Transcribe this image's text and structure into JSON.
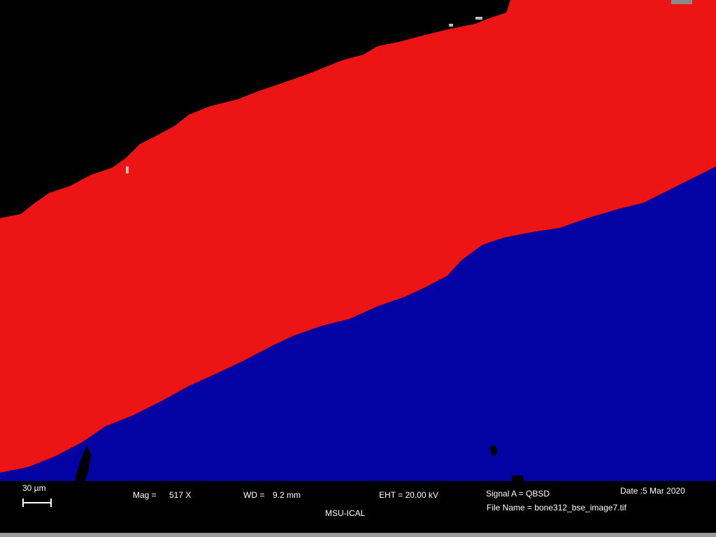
{
  "image": {
    "description_colors": {
      "background_void": "#000000",
      "upper_phase": "#ec1414",
      "lower_phase": "#0303a3",
      "grain_highlight": "#bdbdbd"
    }
  },
  "info_bar": {
    "scale_bar_label": "30 µm",
    "mag_label": "Mag =",
    "mag_value": "517 X",
    "wd_label": "WD =",
    "wd_value": "9.2 mm",
    "eht_label": "EHT = 20.00 kV",
    "signal_label": "Signal A = QBSD",
    "date_label": "Date :5 Mar 2020",
    "facility_label": "MSU-ICAL",
    "file_name_label": "File Name = bone312_bse_image7.tif"
  }
}
